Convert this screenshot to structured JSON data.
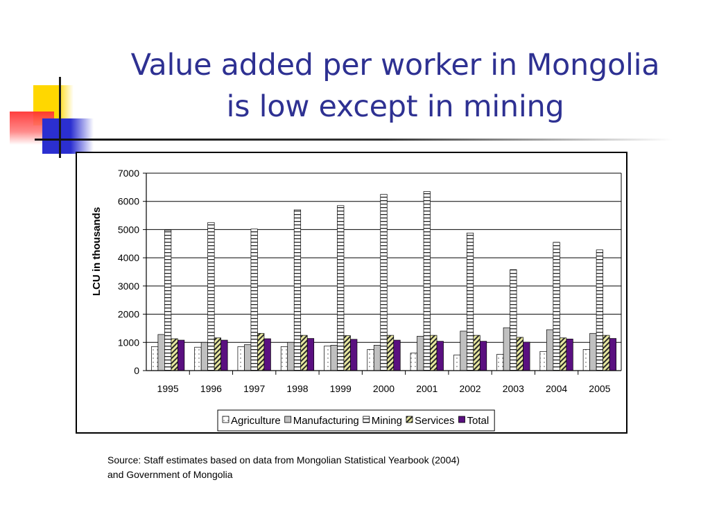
{
  "slide": {
    "title_line1": "Value added per worker in Mongolia",
    "title_line2": "is low except in mining",
    "source_line1": "Source: Staff estimates based on data from Mongolian Statistical Yearbook (2004)",
    "source_line2": "and Government of Mongolia"
  },
  "colors": {
    "title": "#2E3192",
    "deco_yellow": "#FFD700",
    "deco_red": "#FF3B3B",
    "deco_blue": "#2B2FD0",
    "manufacturing": "#C0C0C0",
    "services": "#E8E8A0",
    "total": "#5A1080"
  },
  "chart_data": {
    "type": "bar",
    "title": "",
    "xlabel": "",
    "ylabel": "LCU in thousands",
    "ylim": [
      0,
      7000
    ],
    "yticks": [
      "0",
      "1000",
      "2000",
      "3000",
      "4000",
      "5000",
      "6000",
      "7000"
    ],
    "grid": true,
    "legend_position": "bottom",
    "categories": [
      "1995",
      "1996",
      "1997",
      "1998",
      "1999",
      "2000",
      "2001",
      "2002",
      "2003",
      "2004",
      "2005"
    ],
    "series": [
      {
        "name": "Agriculture",
        "pattern": "dots",
        "values": [
          850,
          830,
          850,
          850,
          870,
          750,
          620,
          550,
          580,
          680,
          750
        ]
      },
      {
        "name": "Manufacturing",
        "pattern": "gray",
        "values": [
          1280,
          1000,
          920,
          1000,
          900,
          900,
          1220,
          1400,
          1520,
          1450,
          1320
        ]
      },
      {
        "name": "Mining",
        "pattern": "hstripes",
        "values": [
          4980,
          5250,
          5020,
          5700,
          5850,
          6250,
          6350,
          4880,
          3580,
          4550,
          4280
        ]
      },
      {
        "name": "Services",
        "pattern": "diagonal",
        "values": [
          1130,
          1160,
          1320,
          1250,
          1240,
          1250,
          1250,
          1250,
          1180,
          1160,
          1250
        ]
      },
      {
        "name": "Total",
        "pattern": "solid",
        "values": [
          1080,
          1080,
          1130,
          1140,
          1110,
          1080,
          1040,
          1040,
          1010,
          1120,
          1140
        ]
      }
    ]
  }
}
